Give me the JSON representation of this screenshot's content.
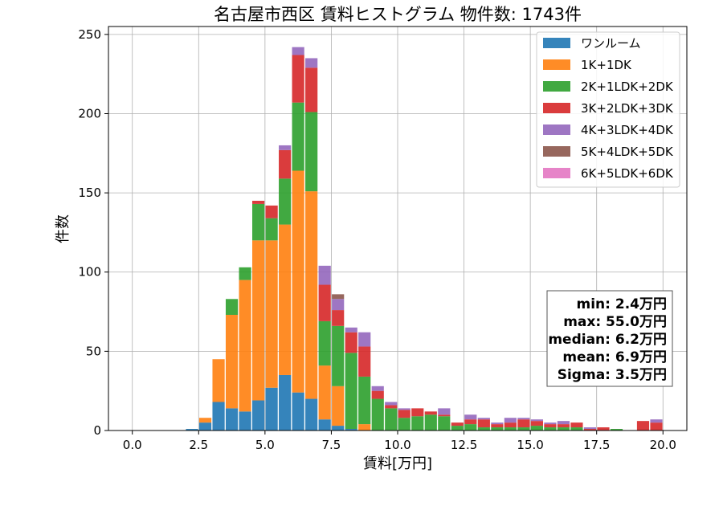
{
  "chart_data": {
    "type": "bar",
    "stacked": true,
    "title": "名古屋市西区 賃料ヒストグラム 物件数: 1743件",
    "xlabel": "賃料[万円]",
    "ylabel": "件数",
    "xlim": [
      -0.9,
      20.9
    ],
    "ylim": [
      0,
      255
    ],
    "xticks": [
      0,
      2.5,
      5,
      7.5,
      10,
      12.5,
      15,
      17.5,
      20
    ],
    "xtick_labels": [
      "0.0",
      "2.5",
      "5.0",
      "7.5",
      "10.0",
      "12.5",
      "15.0",
      "17.5",
      "20.0"
    ],
    "yticks": [
      0,
      50,
      100,
      150,
      200,
      250
    ],
    "ytick_labels": [
      "0",
      "50",
      "100",
      "150",
      "200",
      "250"
    ],
    "grid": true,
    "legend_position": "top-right",
    "bin_width": 0.5,
    "x": [
      2.0,
      2.5,
      3.0,
      3.5,
      4.0,
      4.5,
      5.0,
      5.5,
      6.0,
      6.5,
      7.0,
      7.5,
      8.0,
      8.5,
      9.0,
      9.5,
      10.0,
      10.5,
      11.0,
      11.5,
      12.0,
      12.5,
      13.0,
      13.5,
      14.0,
      14.5,
      15.0,
      15.5,
      16.0,
      16.5,
      17.0,
      17.5,
      18.0,
      18.5,
      19.0,
      19.5
    ],
    "series": [
      {
        "name": "ワンルーム",
        "color": "#1f77b4",
        "values": [
          1,
          5,
          18,
          14,
          12,
          19,
          27,
          35,
          24,
          20,
          7,
          3,
          1,
          0,
          0,
          0,
          0,
          0,
          0,
          0,
          0,
          0,
          0,
          0,
          0,
          0,
          0,
          0,
          0,
          0,
          0,
          0,
          0,
          0,
          0,
          0
        ]
      },
      {
        "name": "1K+1DK",
        "color": "#ff7f0e",
        "values": [
          0,
          3,
          27,
          59,
          83,
          101,
          93,
          95,
          140,
          131,
          34,
          25,
          0,
          4,
          0,
          0,
          0,
          0,
          0,
          0,
          0,
          0,
          0,
          0,
          0,
          0,
          0,
          0,
          0,
          0,
          0,
          0,
          0,
          0,
          0,
          0
        ]
      },
      {
        "name": "2K+1LDK+2DK",
        "color": "#2ca02c",
        "values": [
          0,
          0,
          0,
          10,
          8,
          23,
          14,
          29,
          43,
          50,
          28,
          38,
          48,
          30,
          20,
          14,
          8,
          9,
          10,
          9,
          3,
          4,
          2,
          2,
          2,
          2,
          3,
          2,
          2,
          2,
          0,
          0,
          1,
          0,
          0,
          0
        ]
      },
      {
        "name": "3K+2LDK+3DK",
        "color": "#d62728",
        "values": [
          0,
          0,
          0,
          0,
          0,
          2,
          8,
          18,
          30,
          28,
          23,
          10,
          13,
          19,
          5,
          2,
          5,
          5,
          2,
          1,
          2,
          3,
          5,
          2,
          3,
          5,
          3,
          2,
          2,
          3,
          1,
          2,
          0,
          0,
          6,
          5
        ]
      },
      {
        "name": "4K+3LDK+4DK",
        "color": "#9467bd",
        "values": [
          0,
          0,
          0,
          0,
          0,
          0,
          0,
          3,
          5,
          6,
          12,
          7,
          3,
          9,
          3,
          2,
          1,
          0,
          0,
          4,
          0,
          3,
          1,
          1,
          3,
          1,
          1,
          1,
          2,
          0,
          1,
          0,
          0,
          0,
          0,
          2
        ]
      },
      {
        "name": "5K+4LDK+5DK",
        "color": "#8c564b",
        "values": [
          0,
          0,
          0,
          0,
          0,
          0,
          0,
          0,
          0,
          0,
          0,
          3,
          0,
          0,
          0,
          0,
          0,
          0,
          0,
          0,
          0,
          0,
          0,
          0,
          0,
          0,
          0,
          0,
          0,
          0,
          0,
          0,
          0,
          0,
          0,
          0
        ]
      },
      {
        "name": "6K+5LDK+6DK",
        "color": "#e377c2",
        "values": [
          0,
          0,
          0,
          0,
          0,
          0,
          0,
          0,
          0,
          0,
          0,
          0,
          0,
          0,
          0,
          0,
          0,
          0,
          0,
          0,
          0,
          0,
          0,
          0,
          0,
          0,
          0,
          0,
          0,
          0,
          0,
          0,
          0,
          0,
          0,
          0
        ]
      }
    ]
  },
  "stats": {
    "min": "min: 2.4万円",
    "max": "max: 55.0万円",
    "median": "median: 6.2万円",
    "mean": "mean: 6.9万円",
    "sigma": "Sigma: 3.5万円"
  }
}
